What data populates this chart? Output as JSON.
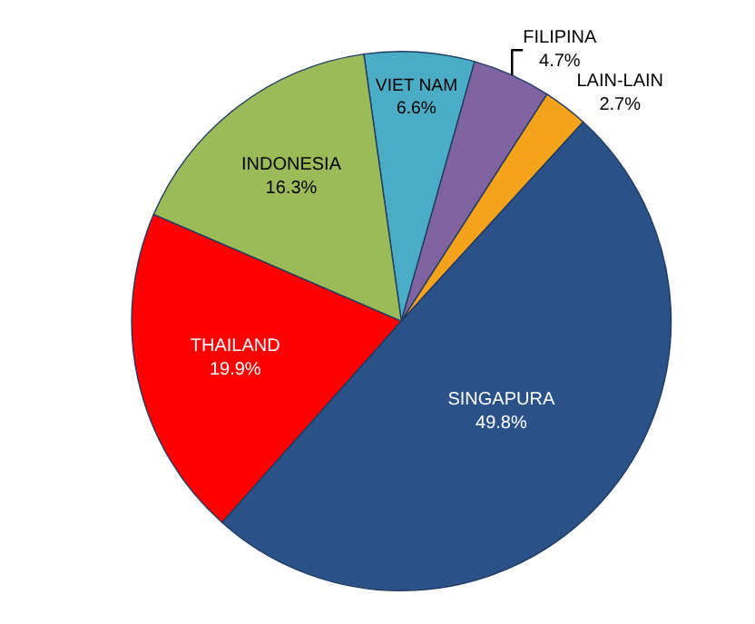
{
  "chart_data": {
    "type": "pie",
    "categories": [
      "VIET NAM",
      "FILIPINA",
      "LAIN-LAIN",
      "SINGAPURA",
      "THAILAND",
      "INDONESIA"
    ],
    "values": [
      6.6,
      4.7,
      2.7,
      49.8,
      19.9,
      16.3
    ],
    "value_labels": [
      "6.6%",
      "4.7%",
      "2.7%",
      "49.8%",
      "19.9%",
      "16.3%"
    ],
    "colors": [
      "#4bacc6",
      "#8064a2",
      "#f5a21c",
      "#2a5288",
      "#ff0000",
      "#9bbb59"
    ],
    "legend": false
  }
}
